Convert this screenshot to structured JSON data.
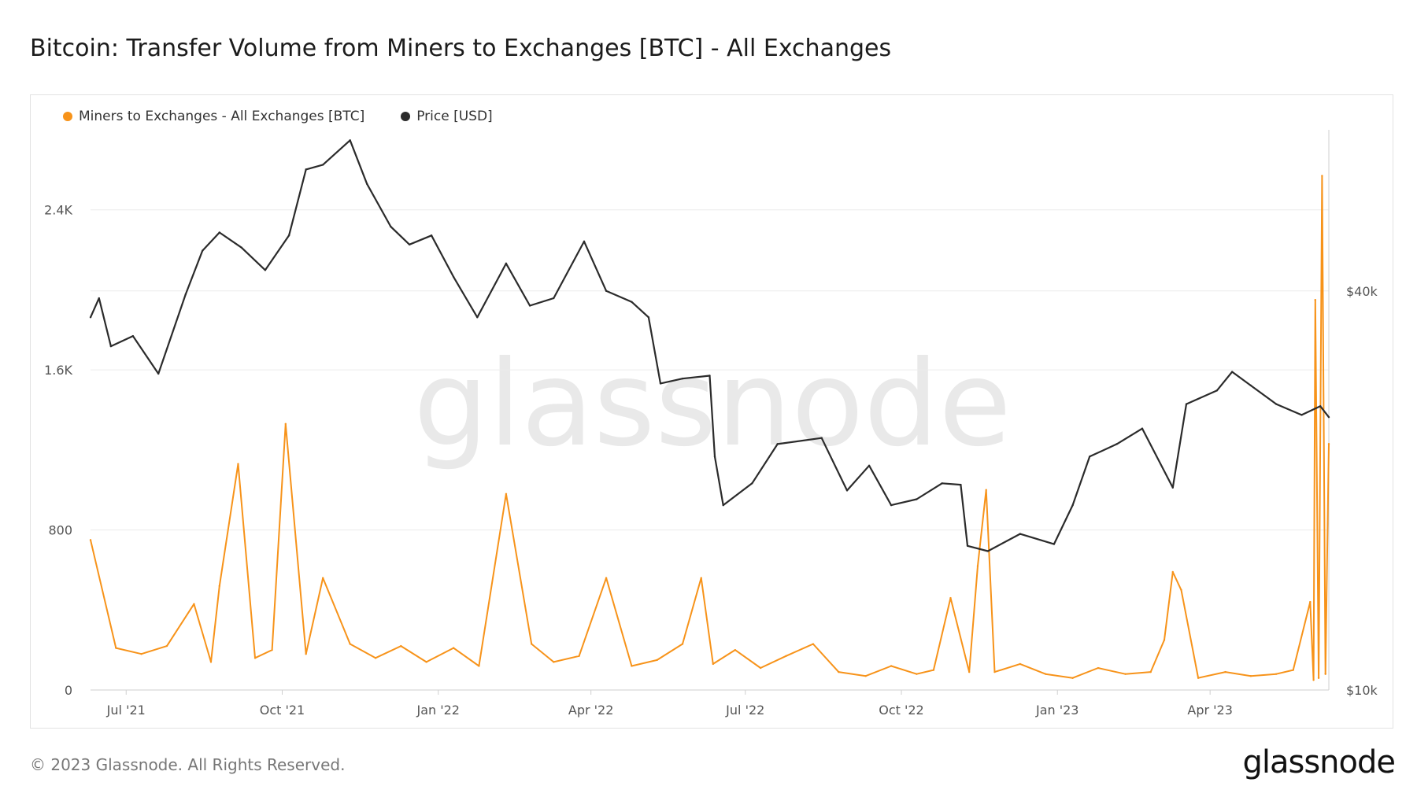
{
  "title": "Bitcoin: Transfer Volume from Miners to Exchanges [BTC] - All Exchanges",
  "footer": "© 2023 Glassnode. All Rights Reserved.",
  "brand": "glassnode",
  "watermark": "glassnode",
  "colors": {
    "volume": "#f7931a",
    "price": "#2b2b2b",
    "grid": "#ececec"
  },
  "legend": [
    {
      "label": "Miners to Exchanges - All Exchanges [BTC]",
      "color": "#f7931a"
    },
    {
      "label": "Price [USD]",
      "color": "#2b2b2b"
    }
  ],
  "chart_data": {
    "type": "line",
    "x_range": [
      "2021-06-10",
      "2023-06-10"
    ],
    "x_ticks": [
      {
        "label": "Jul '21",
        "date": "2021-07-01"
      },
      {
        "label": "Oct '21",
        "date": "2021-10-01"
      },
      {
        "label": "Jan '22",
        "date": "2022-01-01"
      },
      {
        "label": "Apr '22",
        "date": "2022-04-01"
      },
      {
        "label": "Jul '22",
        "date": "2022-07-01"
      },
      {
        "label": "Oct '22",
        "date": "2022-10-01"
      },
      {
        "label": "Jan '23",
        "date": "2023-01-01"
      },
      {
        "label": "Apr '23",
        "date": "2023-04-01"
      }
    ],
    "y_left": {
      "range": [
        0,
        2800
      ],
      "ticks": [
        0,
        800,
        1600,
        2400
      ],
      "tick_labels": [
        "0",
        "800",
        "1.6K",
        "2.4K"
      ]
    },
    "y_right": {
      "scale": "log",
      "range": [
        10000,
        70000
      ],
      "ticks": [
        10000,
        40000
      ],
      "tick_labels": [
        "$10k",
        "$40k"
      ]
    },
    "grid": true,
    "legend_position": "top-left",
    "series": [
      {
        "name": "Miners to Exchanges - All Exchanges [BTC]",
        "axis": "left",
        "color": "#f7931a",
        "x": [
          "2021-06-10",
          "2021-06-25",
          "2021-07-10",
          "2021-07-25",
          "2021-08-10",
          "2021-08-20",
          "2021-08-25",
          "2021-09-05",
          "2021-09-15",
          "2021-09-25",
          "2021-10-03",
          "2021-10-15",
          "2021-10-25",
          "2021-11-10",
          "2021-11-25",
          "2021-12-10",
          "2021-12-25",
          "2022-01-10",
          "2022-01-25",
          "2022-02-10",
          "2022-02-25",
          "2022-03-10",
          "2022-03-25",
          "2022-04-10",
          "2022-04-25",
          "2022-05-10",
          "2022-05-25",
          "2022-06-05",
          "2022-06-12",
          "2022-06-25",
          "2022-07-10",
          "2022-07-25",
          "2022-08-10",
          "2022-08-25",
          "2022-09-10",
          "2022-09-25",
          "2022-10-10",
          "2022-10-20",
          "2022-10-30",
          "2022-11-10",
          "2022-11-15",
          "2022-11-20",
          "2022-11-25",
          "2022-12-10",
          "2022-12-25",
          "2023-01-10",
          "2023-01-25",
          "2023-02-10",
          "2023-02-25",
          "2023-03-05",
          "2023-03-10",
          "2023-03-15",
          "2023-03-25",
          "2023-04-10",
          "2023-04-25",
          "2023-05-10",
          "2023-05-20",
          "2023-05-30",
          "2023-06-01",
          "2023-06-02",
          "2023-06-04",
          "2023-06-06",
          "2023-06-08",
          "2023-06-10"
        ],
        "values": [
          750,
          210,
          180,
          220,
          430,
          140,
          520,
          1130,
          160,
          200,
          1330,
          180,
          560,
          230,
          160,
          220,
          140,
          210,
          120,
          980,
          230,
          140,
          170,
          560,
          120,
          150,
          230,
          560,
          130,
          200,
          110,
          170,
          230,
          90,
          70,
          120,
          80,
          100,
          460,
          90,
          620,
          1000,
          90,
          130,
          80,
          60,
          110,
          80,
          90,
          250,
          590,
          500,
          60,
          90,
          70,
          80,
          100,
          440,
          50,
          1950,
          60,
          2570,
          80,
          1230
        ]
      },
      {
        "name": "Price [USD]",
        "axis": "right",
        "color": "#2b2b2b",
        "x": [
          "2021-06-10",
          "2021-06-15",
          "2021-06-22",
          "2021-07-05",
          "2021-07-20",
          "2021-08-05",
          "2021-08-15",
          "2021-08-25",
          "2021-09-07",
          "2021-09-21",
          "2021-10-05",
          "2021-10-15",
          "2021-10-25",
          "2021-11-10",
          "2021-11-20",
          "2021-12-04",
          "2021-12-15",
          "2021-12-28",
          "2022-01-10",
          "2022-01-24",
          "2022-02-10",
          "2022-02-24",
          "2022-03-10",
          "2022-03-28",
          "2022-04-10",
          "2022-04-25",
          "2022-05-05",
          "2022-05-12",
          "2022-05-25",
          "2022-06-10",
          "2022-06-13",
          "2022-06-18",
          "2022-07-05",
          "2022-07-20",
          "2022-08-15",
          "2022-08-30",
          "2022-09-12",
          "2022-09-25",
          "2022-10-10",
          "2022-10-25",
          "2022-11-05",
          "2022-11-09",
          "2022-11-21",
          "2022-12-10",
          "2022-12-30",
          "2023-01-10",
          "2023-01-20",
          "2023-02-05",
          "2023-02-20",
          "2023-03-10",
          "2023-03-18",
          "2023-04-05",
          "2023-04-14",
          "2023-04-25",
          "2023-05-10",
          "2023-05-25",
          "2023-06-05",
          "2023-06-10"
        ],
        "values": [
          36500,
          39000,
          33000,
          34200,
          30000,
          39500,
          46000,
          49000,
          46500,
          43000,
          48500,
          61000,
          62000,
          67500,
          58000,
          50000,
          47000,
          48500,
          42000,
          36500,
          44000,
          38000,
          39000,
          47500,
          40000,
          38500,
          36500,
          29000,
          29500,
          29800,
          22500,
          19000,
          20500,
          23500,
          24000,
          20000,
          21800,
          19000,
          19400,
          20500,
          20400,
          16500,
          16200,
          17200,
          16600,
          19000,
          22500,
          23500,
          24800,
          20200,
          27000,
          28300,
          30200,
          28800,
          27000,
          26000,
          26800,
          25800
        ]
      }
    ]
  }
}
